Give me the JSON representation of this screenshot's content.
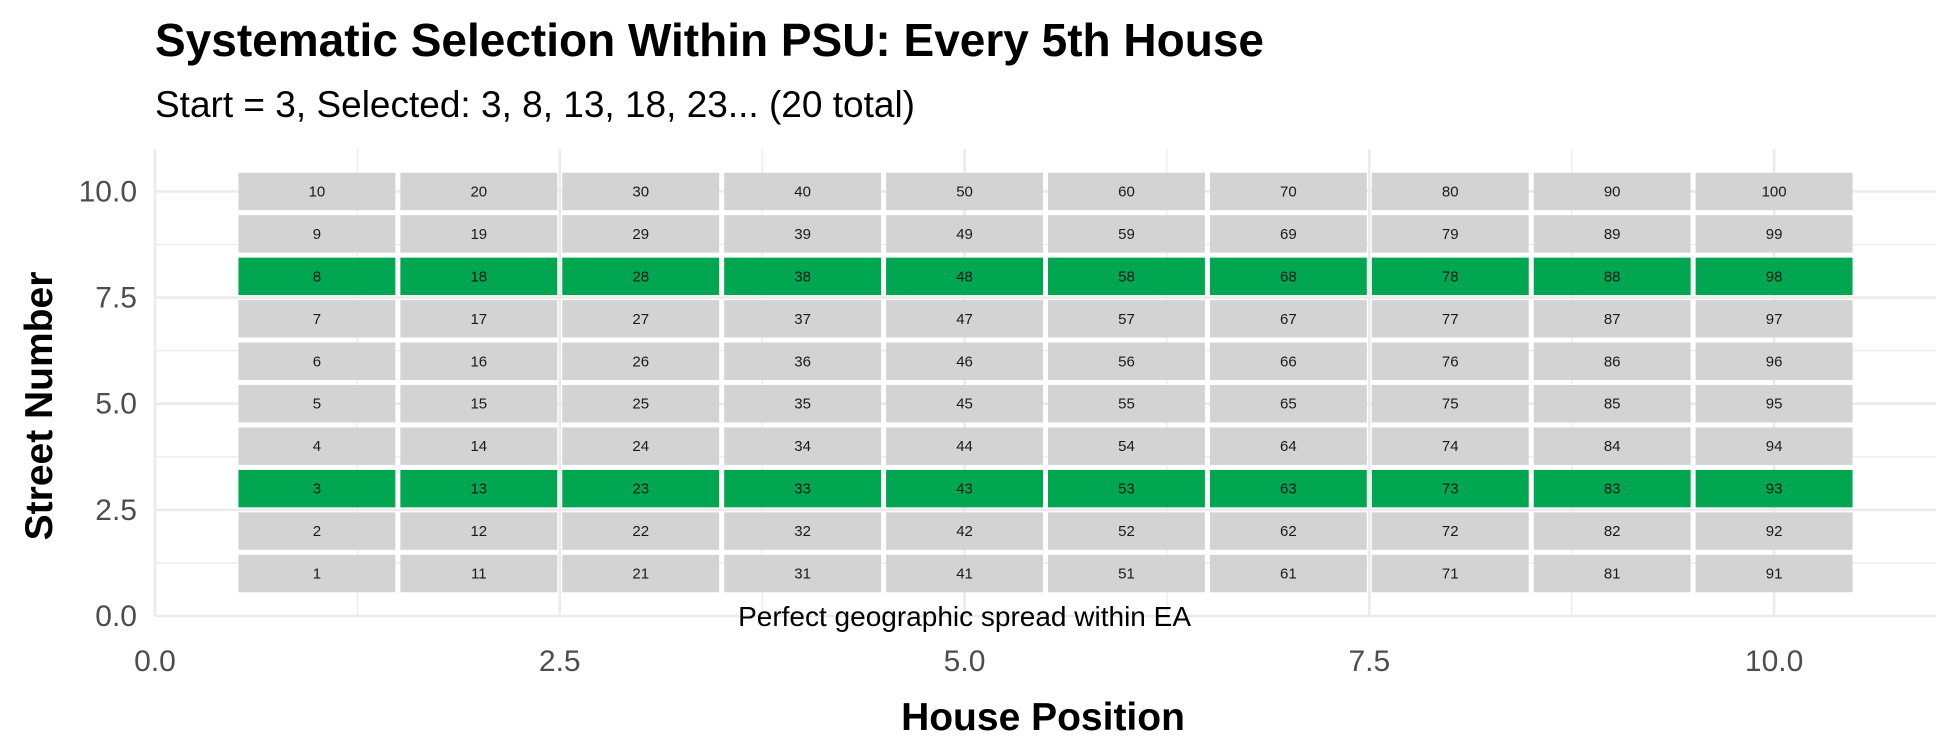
{
  "chart_data": {
    "type": "heatmap",
    "title": "Systematic Selection Within PSU: Every 5th House",
    "subtitle": "Start = 3, Selected: 3, 8, 13, 18, 23... (20 total)",
    "xlabel": "House Position",
    "ylabel": "Street Number",
    "xlim": [
      0,
      11
    ],
    "ylim": [
      0,
      11
    ],
    "x_ticks": [
      0,
      2.5,
      5,
      7.5,
      10
    ],
    "y_ticks": [
      0,
      2.5,
      5,
      7.5,
      10
    ],
    "x_tick_labels": [
      "0.0",
      "2.5",
      "5.0",
      "7.5",
      "10.0"
    ],
    "y_tick_labels": [
      "0.0",
      "2.5",
      "5.0",
      "7.5",
      "10.0"
    ],
    "grid": true,
    "columns": 10,
    "rows": 10,
    "cell_label_rule": "house = (position - 1) * 10 + street",
    "selected_streets": [
      3,
      8
    ],
    "colors": {
      "selected": "#00a650",
      "unselected": "#d3d3d3",
      "grid": "#ebebeb"
    },
    "annotation": {
      "text": "Perfect geographic spread within EA",
      "x": 5,
      "y": 0
    }
  }
}
